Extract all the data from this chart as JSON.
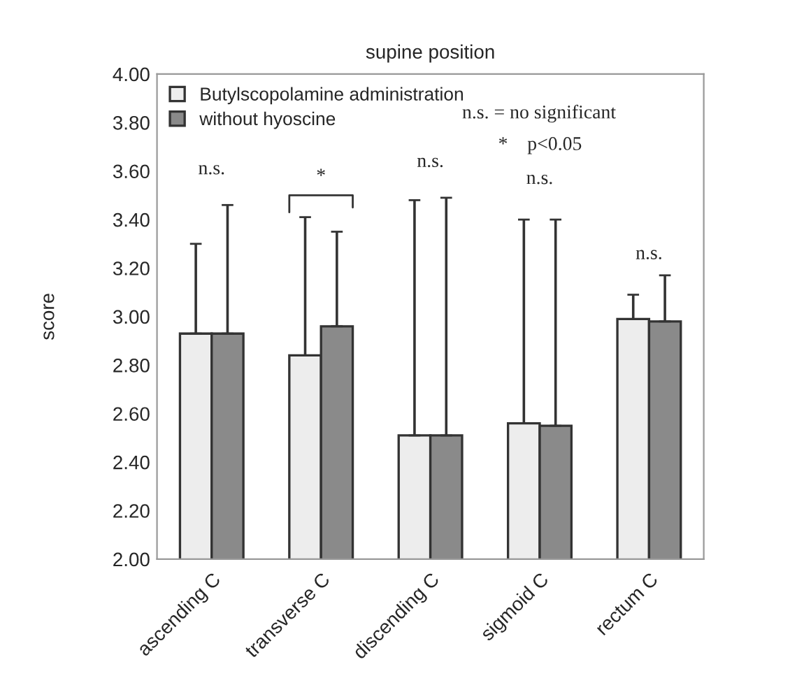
{
  "chart_data": {
    "type": "bar",
    "title": "supine position",
    "ylabel": "score",
    "categories": [
      "ascending C",
      "transverse C",
      "discending C",
      "sigmoid C",
      "rectum C"
    ],
    "series": [
      {
        "name": "Butylscopolamine administration",
        "color": "#ededed",
        "values": [
          2.93,
          2.84,
          2.51,
          2.56,
          2.99
        ],
        "errors": [
          [
            2.93,
            3.3
          ],
          [
            2.84,
            3.41
          ],
          [
            2.51,
            3.48
          ],
          [
            2.56,
            3.4
          ],
          [
            2.99,
            3.09
          ]
        ]
      },
      {
        "name": "without hyoscine",
        "color": "#8a8a8a",
        "values": [
          2.93,
          2.96,
          2.51,
          2.55,
          2.98
        ],
        "errors": [
          [
            2.93,
            3.46
          ],
          [
            2.96,
            3.35
          ],
          [
            2.51,
            3.49
          ],
          [
            2.55,
            3.4
          ],
          [
            2.98,
            3.17
          ]
        ]
      }
    ],
    "ylim": [
      2.0,
      4.0
    ],
    "yticks": [
      {
        "value": 2.0,
        "label": "2.00"
      },
      {
        "value": 2.2,
        "label": "2.20"
      },
      {
        "value": 2.4,
        "label": "2.40"
      },
      {
        "value": 2.6,
        "label": "2.60"
      },
      {
        "value": 2.8,
        "label": "2.80"
      },
      {
        "value": 3.0,
        "label": "3.00"
      },
      {
        "value": 3.2,
        "label": "3.20"
      },
      {
        "value": 3.4,
        "label": "3.40"
      },
      {
        "value": 3.6,
        "label": "3.60"
      },
      {
        "value": 3.8,
        "label": "3.80"
      },
      {
        "value": 4.0,
        "label": "4.00"
      }
    ],
    "annotations": [
      "n.s.",
      "*",
      "n.s.",
      "n.s.",
      "n.s.",
      "n.s. = no significant",
      "*    p<0.05"
    ],
    "legend": "top left",
    "grid": false
  }
}
